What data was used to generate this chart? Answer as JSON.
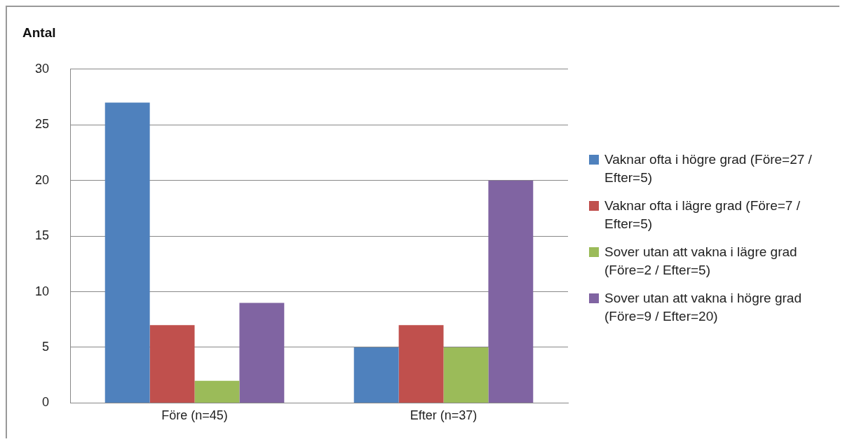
{
  "chart_data": {
    "type": "bar",
    "ylabel": "Antal",
    "categories": [
      "Före (n=45)",
      "Efter (n=37)"
    ],
    "series": [
      {
        "name": "Vaknar ofta i högre grad (Före=27 / Efter=5)",
        "color": "#4f81bd",
        "values": [
          27,
          5
        ]
      },
      {
        "name": "Vaknar ofta i lägre grad (Före=7 / Efter=5)",
        "color": "#c0504d",
        "values": [
          7,
          7
        ]
      },
      {
        "name": "Sover utan att vakna i lägre grad (Före=2 / Efter=5)",
        "color": "#9bbb59",
        "values": [
          2,
          5
        ]
      },
      {
        "name": "Sover utan att vakna i högre grad (Före=9 / Efter=20)",
        "color": "#8064a2",
        "values": [
          9,
          20
        ]
      }
    ],
    "ylim": [
      0,
      30
    ],
    "yticks": [
      0,
      5,
      10,
      15,
      20,
      25,
      30
    ],
    "grid": "y",
    "legend": "right"
  }
}
